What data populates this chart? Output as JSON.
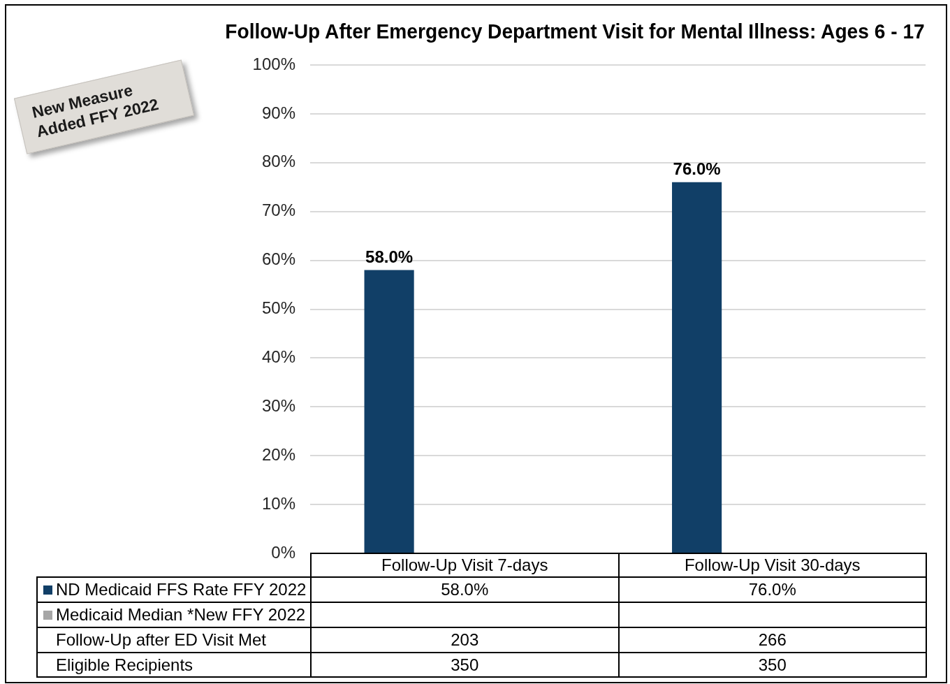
{
  "chart_data": {
    "type": "bar",
    "title": "Follow-Up After Emergency Department Visit for Mental Illness: Ages 6 - 17",
    "categories": [
      "Follow-Up Visit 7-days",
      "Follow-Up Visit 30-days"
    ],
    "series": [
      {
        "name": "ND Medicaid FFS Rate FFY 2022",
        "color": "#113f67",
        "values": [
          58,
          76
        ],
        "value_labels": [
          "58.0%",
          "76.0%"
        ]
      },
      {
        "name": "Medicaid Median *New FFY 2022",
        "color": "#a6a6a6",
        "values": [
          null,
          null
        ]
      }
    ],
    "ylim": [
      0,
      100
    ],
    "yticks": [
      {
        "value": 0,
        "label": "0%"
      },
      {
        "value": 10,
        "label": "10%"
      },
      {
        "value": 20,
        "label": "20%"
      },
      {
        "value": 30,
        "label": "30%"
      },
      {
        "value": 40,
        "label": "40%"
      },
      {
        "value": 50,
        "label": "50%"
      },
      {
        "value": 60,
        "label": "60%"
      },
      {
        "value": 70,
        "label": "70%"
      },
      {
        "value": 80,
        "label": "80%"
      },
      {
        "value": 90,
        "label": "90%"
      },
      {
        "value": 100,
        "label": "100%"
      }
    ],
    "grid": "y",
    "legend": "bottom",
    "annotations": [
      "New Measure Added FFY 2022",
      "Follow-Up after ED Visit Met",
      "203",
      "266",
      "Eligible Recipients",
      "350",
      "350"
    ]
  }
}
